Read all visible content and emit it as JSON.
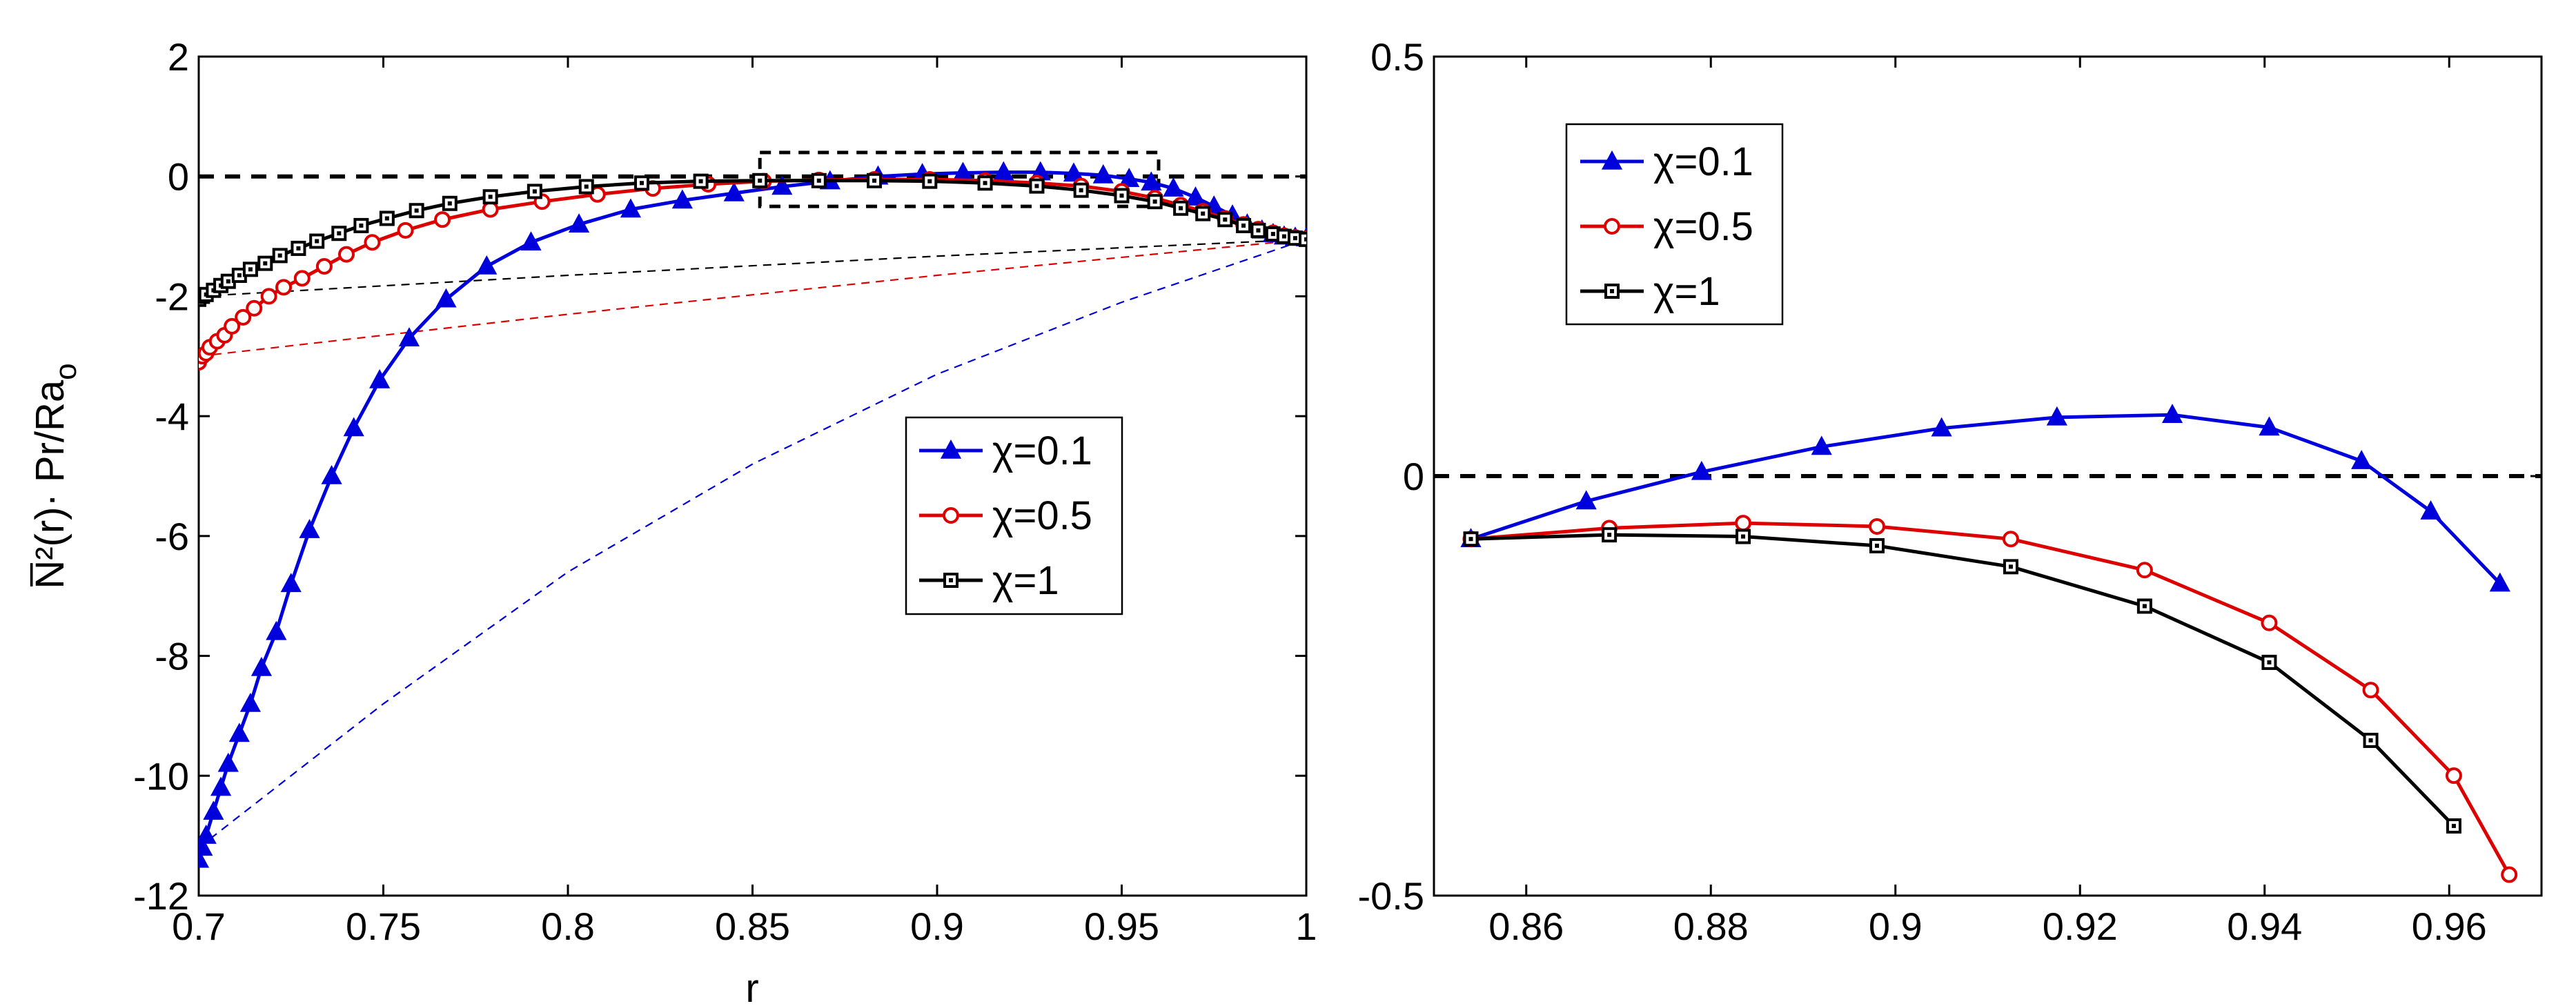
{
  "chart_data": [
    {
      "type": "line",
      "panel": "left",
      "xlabel": "r",
      "ylabel": "N̅²(r)· Pr/Ra",
      "ylabel_subscript": "o",
      "xlim": [
        0.7,
        1.0
      ],
      "ylim": [
        -12,
        2
      ],
      "x_ticks": [
        0.7,
        0.75,
        0.8,
        0.85,
        0.9,
        0.95,
        1
      ],
      "x_tick_labels": [
        "0.7",
        "0.75",
        "0.8",
        "0.85",
        "0.9",
        "0.95",
        "1"
      ],
      "y_ticks": [
        2,
        0,
        -2,
        -4,
        -6,
        -8,
        -10,
        -12
      ],
      "y_tick_labels": [
        "2",
        "0",
        "-2",
        "-4",
        "-6",
        "-8",
        "-10",
        "-12"
      ],
      "reference_line": {
        "y": 0,
        "style": "dashed",
        "color": "#000000"
      },
      "zoom_box": {
        "x": [
          0.852,
          0.96
        ],
        "y": [
          -0.5,
          0.4
        ]
      },
      "legend": {
        "placement": "center-right",
        "entries": [
          "χ=0.1",
          "χ=0.5",
          "χ=1"
        ]
      },
      "series": [
        {
          "name": "χ=0.1",
          "color": "#0000dd",
          "marker": "triangle",
          "x": [
            0.7,
            0.701,
            0.702,
            0.704,
            0.706,
            0.708,
            0.711,
            0.714,
            0.717,
            0.721,
            0.725,
            0.73,
            0.736,
            0.742,
            0.749,
            0.757,
            0.767,
            0.778,
            0.79,
            0.803,
            0.817,
            0.831,
            0.845,
            0.858,
            0.871,
            0.884,
            0.896,
            0.907,
            0.918,
            0.928,
            0.937,
            0.945,
            0.952,
            0.958,
            0.964,
            0.97,
            0.975,
            0.98,
            0.984,
            0.988,
            0.991,
            0.994,
            0.997,
            1.0
          ],
          "y": [
            -11.4,
            -11.2,
            -11.0,
            -10.6,
            -10.2,
            -9.8,
            -9.3,
            -8.8,
            -8.2,
            -7.6,
            -6.8,
            -5.9,
            -5.0,
            -4.2,
            -3.4,
            -2.7,
            -2.05,
            -1.5,
            -1.1,
            -0.8,
            -0.55,
            -0.4,
            -0.28,
            -0.17,
            -0.08,
            0.0,
            0.04,
            0.06,
            0.07,
            0.07,
            0.05,
            0.02,
            -0.04,
            -0.1,
            -0.2,
            -0.35,
            -0.5,
            -0.65,
            -0.8,
            -0.9,
            -0.96,
            -1.0,
            -1.02,
            -1.03
          ]
        },
        {
          "name": "χ=0.5",
          "color": "#dd0000",
          "marker": "circle",
          "x": [
            0.7,
            0.701,
            0.702,
            0.703,
            0.705,
            0.707,
            0.709,
            0.712,
            0.715,
            0.719,
            0.723,
            0.728,
            0.734,
            0.74,
            0.747,
            0.756,
            0.766,
            0.779,
            0.793,
            0.808,
            0.823,
            0.838,
            0.853,
            0.868,
            0.883,
            0.898,
            0.913,
            0.927,
            0.939,
            0.95,
            0.959,
            0.966,
            0.972,
            0.978,
            0.983,
            0.987,
            0.991,
            0.994,
            0.997,
            1.0
          ],
          "y": [
            -3.1,
            -3.0,
            -2.95,
            -2.85,
            -2.75,
            -2.65,
            -2.5,
            -2.35,
            -2.2,
            -2.0,
            -1.85,
            -1.7,
            -1.5,
            -1.3,
            -1.1,
            -0.9,
            -0.72,
            -0.55,
            -0.42,
            -0.3,
            -0.2,
            -0.13,
            -0.08,
            -0.06,
            -0.05,
            -0.05,
            -0.07,
            -0.11,
            -0.16,
            -0.25,
            -0.36,
            -0.48,
            -0.58,
            -0.7,
            -0.8,
            -0.88,
            -0.94,
            -0.99,
            -1.02,
            -1.04
          ]
        },
        {
          "name": "χ=1",
          "color": "#000000",
          "marker": "square",
          "x": [
            0.7,
            0.701,
            0.702,
            0.704,
            0.706,
            0.708,
            0.711,
            0.714,
            0.718,
            0.722,
            0.727,
            0.732,
            0.738,
            0.744,
            0.751,
            0.759,
            0.768,
            0.779,
            0.791,
            0.805,
            0.82,
            0.836,
            0.852,
            0.868,
            0.883,
            0.898,
            0.913,
            0.927,
            0.939,
            0.95,
            0.959,
            0.966,
            0.972,
            0.978,
            0.983,
            0.987,
            0.991,
            0.994,
            0.997,
            1.0
          ],
          "y": [
            -2.05,
            -2.0,
            -1.97,
            -1.9,
            -1.82,
            -1.75,
            -1.65,
            -1.55,
            -1.45,
            -1.32,
            -1.2,
            -1.08,
            -0.95,
            -0.82,
            -0.7,
            -0.57,
            -0.45,
            -0.34,
            -0.25,
            -0.17,
            -0.11,
            -0.08,
            -0.07,
            -0.07,
            -0.07,
            -0.08,
            -0.11,
            -0.16,
            -0.23,
            -0.32,
            -0.42,
            -0.53,
            -0.62,
            -0.72,
            -0.82,
            -0.9,
            -0.96,
            -1.0,
            -1.03,
            -1.05
          ]
        }
      ],
      "thin_dashed_series": [
        {
          "name": "χ=0.1",
          "color": "#0000dd",
          "x": [
            0.7,
            0.75,
            0.8,
            0.85,
            0.9,
            0.95,
            1.0
          ],
          "y": [
            -11.2,
            -8.8,
            -6.6,
            -4.8,
            -3.3,
            -2.1,
            -1.05
          ]
        },
        {
          "name": "χ=0.5",
          "color": "#dd0000",
          "x": [
            0.7,
            0.8,
            0.9,
            1.0
          ],
          "y": [
            -3.0,
            -2.3,
            -1.65,
            -1.05
          ]
        },
        {
          "name": "χ=1",
          "color": "#000000",
          "x": [
            0.7,
            0.8,
            0.9,
            1.0
          ],
          "y": [
            -2.0,
            -1.65,
            -1.33,
            -1.05
          ]
        }
      ]
    },
    {
      "type": "line",
      "panel": "right",
      "xlabel": "",
      "ylabel": "",
      "xlim": [
        0.85,
        0.97
      ],
      "ylim": [
        -0.5,
        0.5
      ],
      "x_ticks": [
        0.86,
        0.88,
        0.9,
        0.92,
        0.94,
        0.96
      ],
      "x_tick_labels": [
        "0.86",
        "0.88",
        "0.9",
        "0.92",
        "0.94",
        "0.96"
      ],
      "y_ticks": [
        0.5,
        0,
        -0.5
      ],
      "y_tick_labels": [
        "0.5",
        "0",
        "-0.5"
      ],
      "reference_line": {
        "y": 0,
        "style": "dashed",
        "color": "#000000"
      },
      "legend": {
        "placement": "top-left",
        "entries": [
          "χ=0.1",
          "χ=0.5",
          "χ=1"
        ]
      },
      "series": [
        {
          "name": "χ=0.1",
          "color": "#0000dd",
          "marker": "triangle",
          "x": [
            0.854,
            0.8665,
            0.879,
            0.892,
            0.905,
            0.9175,
            0.93,
            0.9405,
            0.9505,
            0.958,
            0.9655
          ],
          "y": [
            -0.075,
            -0.03,
            0.005,
            0.035,
            0.057,
            0.07,
            0.073,
            0.058,
            0.018,
            -0.042,
            -0.128
          ]
        },
        {
          "name": "χ=0.5",
          "color": "#dd0000",
          "marker": "circle",
          "x": [
            0.854,
            0.869,
            0.8835,
            0.898,
            0.9125,
            0.927,
            0.9405,
            0.9515,
            0.9605,
            0.9665
          ],
          "y": [
            -0.075,
            -0.062,
            -0.056,
            -0.06,
            -0.075,
            -0.112,
            -0.175,
            -0.255,
            -0.357,
            -0.475
          ]
        },
        {
          "name": "χ=1",
          "color": "#000000",
          "marker": "square",
          "x": [
            0.854,
            0.869,
            0.8835,
            0.898,
            0.9125,
            0.927,
            0.9405,
            0.9515,
            0.9605
          ],
          "y": [
            -0.075,
            -0.07,
            -0.072,
            -0.083,
            -0.108,
            -0.155,
            -0.222,
            -0.315,
            -0.417
          ]
        }
      ]
    }
  ]
}
